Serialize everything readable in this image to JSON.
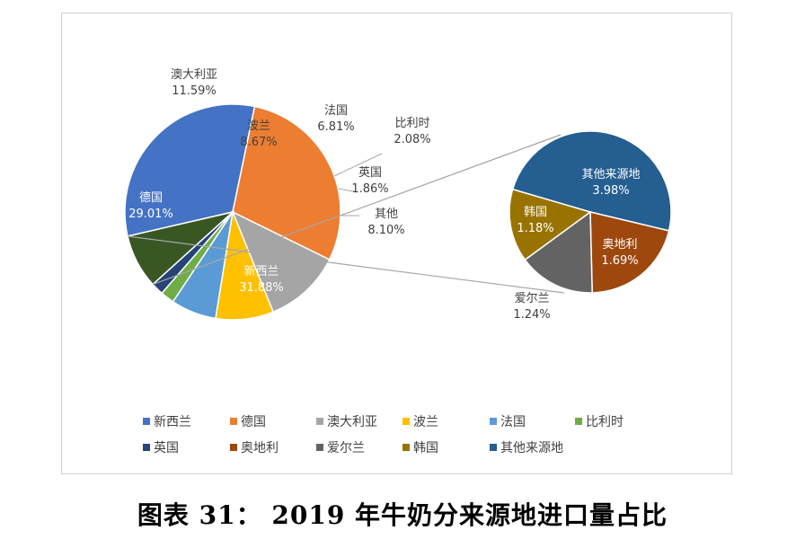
{
  "chart_data": {
    "type": "pie",
    "subtype": "pie-of-pie",
    "title": "图表 31： 2019 年牛奶分来源地进口量占比",
    "main_pie": [
      {
        "name": "新西兰",
        "value": 31.88,
        "label": "31.88%",
        "color": "#4472C4"
      },
      {
        "name": "德国",
        "value": 29.01,
        "label": "29.01%",
        "color": "#ED7D31"
      },
      {
        "name": "澳大利亚",
        "value": 11.59,
        "label": "11.59%",
        "color": "#A5A5A5"
      },
      {
        "name": "波兰",
        "value": 8.67,
        "label": "8.67%",
        "color": "#FFC000"
      },
      {
        "name": "法国",
        "value": 6.81,
        "label": "6.81%",
        "color": "#5B9BD5"
      },
      {
        "name": "比利时",
        "value": 2.08,
        "label": "2.08%",
        "color": "#70AD47"
      },
      {
        "name": "英国",
        "value": 1.86,
        "label": "1.86%",
        "color": "#264478"
      },
      {
        "name": "其他",
        "value": 8.1,
        "label": "8.10%",
        "color": "#385723"
      }
    ],
    "secondary_pie": [
      {
        "name": "其他来源地",
        "value": 3.98,
        "label": "3.98%",
        "color": "#255E91"
      },
      {
        "name": "奥地利",
        "value": 1.69,
        "label": "1.69%",
        "color": "#9E480E"
      },
      {
        "name": "爱尔兰",
        "value": 1.24,
        "label": "1.24%",
        "color": "#636363"
      },
      {
        "name": "韩国",
        "value": 1.18,
        "label": "1.18%",
        "color": "#997300"
      }
    ],
    "legend": [
      {
        "name": "新西兰",
        "color": "#4472C4"
      },
      {
        "name": "德国",
        "color": "#ED7D31"
      },
      {
        "name": "澳大利亚",
        "color": "#A5A5A5"
      },
      {
        "name": "波兰",
        "color": "#FFC000"
      },
      {
        "name": "法国",
        "color": "#5B9BD5"
      },
      {
        "name": "比利时",
        "color": "#70AD47"
      },
      {
        "name": "英国",
        "color": "#264478"
      },
      {
        "name": "奥地利",
        "color": "#9E480E"
      },
      {
        "name": "爱尔兰",
        "color": "#636363"
      },
      {
        "name": "韩国",
        "color": "#997300"
      },
      {
        "name": "其他来源地",
        "color": "#255E91"
      }
    ],
    "legend_position": "bottom"
  }
}
